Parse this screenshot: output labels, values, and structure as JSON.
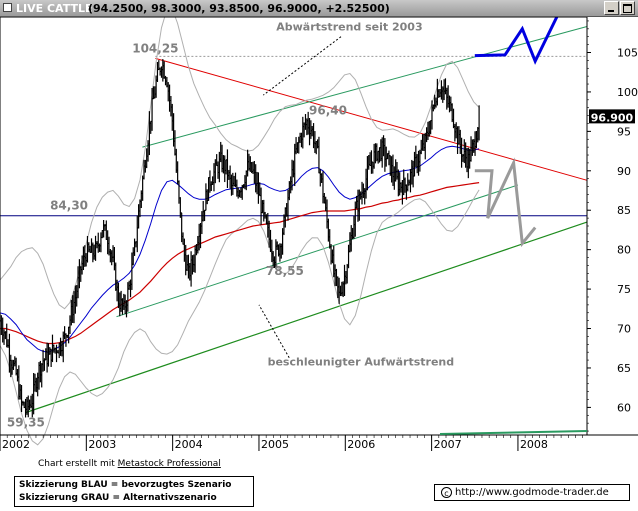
{
  "window": {
    "symbol": "LIVE CATTLE",
    "ohlc": "(94.2500, 98.3000, 93.8500, 96.9000, +2.52500)"
  },
  "chart_data": {
    "type": "candlestick",
    "title": "LIVE CATTLE",
    "last_price": 96.9,
    "last_price_label": "96.900",
    "ylim": [
      56.5,
      109.5
    ],
    "y_ticks": [
      60,
      65,
      70,
      75,
      80,
      85,
      90,
      95,
      100,
      105
    ],
    "x_ticks": [
      "2002",
      "2003",
      "2004",
      "2005",
      "2006",
      "2007",
      "2008"
    ],
    "x_range": [
      2002.0,
      2008.8
    ],
    "colors": {
      "price": "#000000",
      "blue_average": "#0000cc",
      "red_average": "#cc0000",
      "bollinger": "#b0b0b0",
      "horizontal_line": "#000080",
      "downtrend": "#e00000",
      "channel": "#2a9a60",
      "accelerated_uptrend": "#1e8c1e",
      "scenario_blue": "#0000e0",
      "scenario_gray": "#9a9a9a"
    },
    "price_labels": [
      {
        "text": "104,25",
        "x": 2003.8,
        "y": 104.25
      },
      {
        "text": "96,40",
        "x": 2005.8,
        "y": 96.4
      },
      {
        "text": "84,30",
        "x": 2002.8,
        "y": 84.3
      },
      {
        "text": "78,55",
        "x": 2005.3,
        "y": 78.55
      },
      {
        "text": "59,35",
        "x": 2002.3,
        "y": 59.35
      }
    ],
    "annotations": [
      {
        "text": "Abwärtstrend seit 2003",
        "x": 2005.2,
        "y": 107.8
      },
      {
        "text": "beschleunigter Aufwärtstrend",
        "x": 2005.1,
        "y": 65.3
      }
    ],
    "annotation_connectors": [
      {
        "points": [
          [
            2005.95,
            107.0
          ],
          [
            2005.05,
            99.6
          ]
        ]
      },
      {
        "points": [
          [
            2005.35,
            66.3
          ],
          [
            2005.0,
            73.0
          ]
        ]
      }
    ],
    "lines": {
      "horizontal": {
        "y": 84.3
      },
      "downtrend": {
        "points": [
          [
            2003.8,
            104.25
          ],
          [
            2008.8,
            88.8
          ]
        ]
      },
      "channel_upper": {
        "points": [
          [
            2003.65,
            93.0
          ],
          [
            2008.8,
            108.3
          ]
        ]
      },
      "channel_lower": {
        "points": [
          [
            2003.35,
            71.5
          ],
          [
            2008.0,
            88.2
          ]
        ]
      },
      "accelerated_uptrend": {
        "points": [
          [
            2002.3,
            59.35
          ],
          [
            2008.8,
            83.5
          ]
        ]
      },
      "resistance_dotted": {
        "y": 104.5,
        "x_from": 2003.8,
        "x_to": 2008.8
      }
    },
    "scenarios": {
      "blue": {
        "points": [
          [
            2007.5,
            104.6
          ],
          [
            2007.85,
            104.7
          ],
          [
            2008.05,
            108.0
          ],
          [
            2008.2,
            103.9
          ],
          [
            2008.45,
            109.5
          ]
        ]
      },
      "gray": {
        "points": [
          [
            2007.5,
            90.0
          ],
          [
            2007.7,
            90.0
          ],
          [
            2007.65,
            84.0
          ],
          [
            2007.95,
            91.0
          ],
          [
            2008.05,
            80.8
          ],
          [
            2008.2,
            82.8
          ]
        ]
      }
    },
    "series": [
      {
        "name": "price",
        "kind": "ohlc",
        "x_start": 2002.0,
        "x_end": 2007.55,
        "closes": [
          71.0,
          69.2,
          66.2,
          64.2,
          60.4,
          59.8,
          61.0,
          64.4,
          66.0,
          66.4,
          67.4,
          67.8,
          68.8,
          71.2,
          74.0,
          77.6,
          79.6,
          79.6,
          80.0,
          82.8,
          81.6,
          78.2,
          73.6,
          72.4,
          75.2,
          80.0,
          86.2,
          91.6,
          97.0,
          101.2,
          103.8,
          101.6,
          96.4,
          88.0,
          80.2,
          76.8,
          78.8,
          82.8,
          85.8,
          88.8,
          90.0,
          91.2,
          90.4,
          88.0,
          87.4,
          88.4,
          90.4,
          89.8,
          87.2,
          84.0,
          81.4,
          79.2,
          80.6,
          84.2,
          88.6,
          92.4,
          94.8,
          96.2,
          95.0,
          92.0,
          87.2,
          82.2,
          77.0,
          74.2,
          76.6,
          80.4,
          84.8,
          86.8,
          89.0,
          91.2,
          92.4,
          92.6,
          91.4,
          89.6,
          88.4,
          88.0,
          89.0,
          90.6,
          92.0,
          93.6,
          96.4,
          99.8,
          100.8,
          99.0,
          97.4,
          94.2,
          92.0,
          91.4,
          93.2,
          96.9
        ]
      },
      {
        "name": "blue_average",
        "kind": "line",
        "x_start": 2002.0,
        "x_end": 2007.55,
        "values": [
          72.0,
          71.8,
          71.2,
          70.5,
          69.5,
          68.6,
          68.0,
          67.4,
          67.1,
          67.0,
          67.3,
          67.7,
          68.2,
          68.9,
          69.8,
          70.7,
          71.6,
          72.6,
          73.4,
          74.2,
          74.9,
          75.5,
          75.9,
          76.4,
          77.0,
          78.0,
          79.4,
          81.2,
          83.3,
          85.6,
          87.5,
          88.6,
          88.8,
          88.3,
          87.7,
          87.1,
          86.6,
          86.4,
          86.4,
          86.6,
          87.0,
          87.3,
          87.6,
          87.7,
          87.8,
          87.9,
          88.1,
          88.3,
          88.4,
          88.3,
          87.9,
          87.6,
          87.4,
          87.5,
          87.9,
          88.5,
          89.3,
          89.9,
          90.3,
          90.4,
          90.0,
          89.2,
          88.2,
          87.3,
          86.7,
          86.4,
          86.6,
          87.0,
          87.6,
          88.2,
          88.8,
          89.3,
          89.6,
          89.8,
          89.9,
          90.0,
          90.1,
          90.3,
          90.6,
          91.1,
          91.6,
          92.2,
          92.7,
          93.0,
          93.1,
          93.0,
          92.8,
          92.6,
          92.6,
          92.8
        ]
      },
      {
        "name": "red_average",
        "kind": "line",
        "x_start": 2002.0,
        "x_end": 2007.55,
        "values": [
          70.0,
          70.0,
          69.8,
          69.6,
          69.3,
          69.0,
          68.7,
          68.4,
          68.2,
          68.1,
          68.1,
          68.2,
          68.4,
          68.7,
          69.0,
          69.4,
          69.9,
          70.4,
          70.9,
          71.4,
          71.9,
          72.4,
          72.8,
          73.2,
          73.6,
          74.1,
          74.6,
          75.3,
          76.0,
          76.8,
          77.6,
          78.3,
          78.9,
          79.4,
          79.8,
          80.1,
          80.4,
          80.7,
          81.0,
          81.3,
          81.6,
          81.8,
          82.0,
          82.2,
          82.4,
          82.6,
          82.8,
          83.0,
          83.1,
          83.2,
          83.3,
          83.4,
          83.5,
          83.7,
          83.9,
          84.1,
          84.3,
          84.5,
          84.7,
          84.8,
          84.9,
          84.9,
          84.9,
          84.9,
          84.9,
          85.0,
          85.1,
          85.2,
          85.4,
          85.5,
          85.7,
          85.9,
          86.0,
          86.2,
          86.3,
          86.5,
          86.6,
          86.8,
          86.9,
          87.1,
          87.3,
          87.5,
          87.7,
          87.9,
          88.0,
          88.1,
          88.2,
          88.3,
          88.4,
          88.5
        ]
      }
    ]
  },
  "footer": {
    "credit_prefix": "Chart erstellt mit ",
    "credit_link": "Metastock Professional",
    "legend_line1": "Skizzierung BLAU = bevorzugtes Szenario",
    "legend_line2": "Skizzierung GRAU = Alternativszenario",
    "copyright_symbol": "c",
    "url": "http://www.godmode-trader.de"
  }
}
